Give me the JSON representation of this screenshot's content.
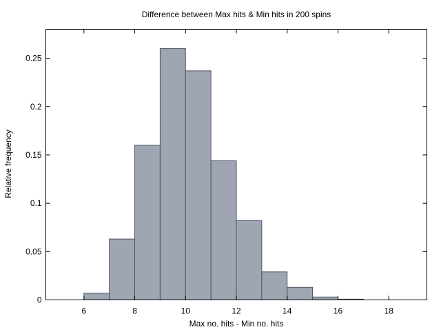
{
  "chart_data": {
    "type": "bar",
    "title": "Difference between Max hits & Min hits in 200 spins",
    "xlabel": "Max no. hits - Min no. hits",
    "ylabel": "Relative frequency",
    "xlim": [
      4.5,
      19.5
    ],
    "ylim": [
      0,
      0.28
    ],
    "x_ticks": [
      6,
      8,
      10,
      12,
      14,
      16,
      18
    ],
    "y_ticks": [
      0,
      0.05,
      0.1,
      0.15,
      0.2,
      0.25
    ],
    "x_tick_labels": [
      "6",
      "8",
      "10",
      "12",
      "14",
      "16",
      "18"
    ],
    "y_tick_labels": [
      "0",
      "0.05",
      "0.1",
      "0.15",
      "0.2",
      "0.25"
    ],
    "bin_width": 1,
    "bins": [
      {
        "start": 6,
        "end": 7,
        "value": 0.007
      },
      {
        "start": 7,
        "end": 8,
        "value": 0.063
      },
      {
        "start": 8,
        "end": 9,
        "value": 0.16
      },
      {
        "start": 9,
        "end": 10,
        "value": 0.26
      },
      {
        "start": 10,
        "end": 11,
        "value": 0.237
      },
      {
        "start": 11,
        "end": 12,
        "value": 0.144
      },
      {
        "start": 12,
        "end": 13,
        "value": 0.082
      },
      {
        "start": 13,
        "end": 14,
        "value": 0.029
      },
      {
        "start": 14,
        "end": 15,
        "value": 0.013
      },
      {
        "start": 15,
        "end": 16,
        "value": 0.003
      },
      {
        "start": 16,
        "end": 17,
        "value": 0.0008
      }
    ],
    "grid": false,
    "legend": "none",
    "colors": {
      "bar_fill": "#a0a5b4",
      "bar_stroke": "#4d5561",
      "axis": "#000000"
    }
  }
}
